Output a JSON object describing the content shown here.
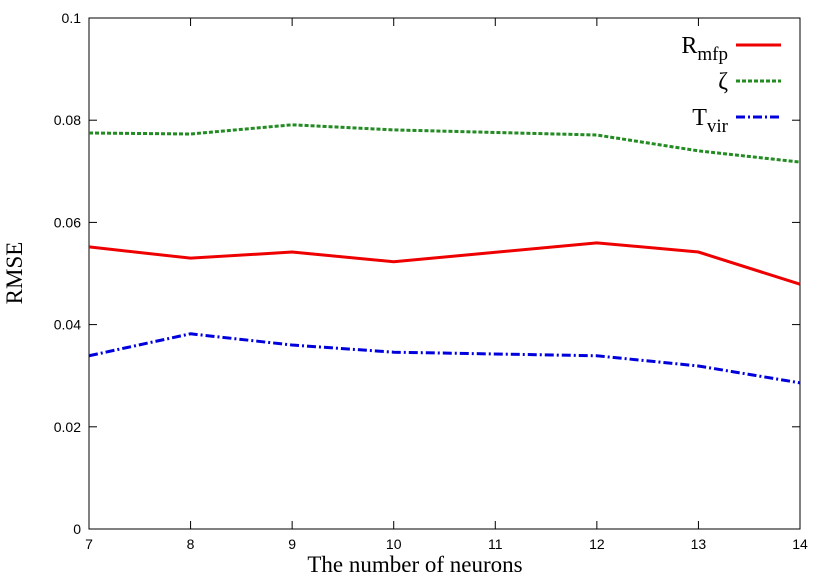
{
  "chart_data": {
    "type": "line",
    "xlabel": "The number of neurons",
    "ylabel": "RMSE",
    "x": [
      7,
      8,
      9,
      10,
      12,
      13,
      14
    ],
    "series": [
      {
        "name": "R",
        "name_subscript": "mfp",
        "color": "#ee0000",
        "dash": "solid",
        "values": [
          0.0552,
          0.053,
          0.0542,
          0.0523,
          0.056,
          0.0542,
          0.0479
        ]
      },
      {
        "name": "ζ",
        "color": "#228b22",
        "dash": "dashed",
        "values": [
          0.0775,
          0.0773,
          0.0791,
          0.0781,
          0.0771,
          0.074,
          0.0718
        ]
      },
      {
        "name": "T",
        "name_subscript": "vir",
        "color": "#0000dd",
        "dash": "dashdot",
        "values": [
          0.0339,
          0.0382,
          0.036,
          0.0346,
          0.0339,
          0.0319,
          0.0286
        ]
      }
    ],
    "xlim": [
      7,
      14
    ],
    "xticks": [
      7,
      8,
      9,
      10,
      11,
      12,
      13,
      14
    ],
    "ylim": [
      0,
      0.1
    ],
    "yticks": [
      0,
      0.02,
      0.04,
      0.06,
      0.08,
      0.1
    ],
    "legend": "upper right"
  }
}
